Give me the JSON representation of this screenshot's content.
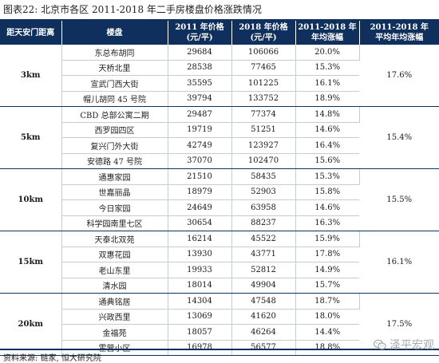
{
  "title": "图表22: 北京市各区 2011-2018 年二手房楼盘价格涨跌情况",
  "headers": {
    "distance": "距天安门距离",
    "estate": "楼盘",
    "price2011_line1": "2011 年价格",
    "price2011_line2": "(元/平)",
    "price2018_line1": "2018 年价格",
    "price2018_line2": "(元/平)",
    "yoy_line1": "2011-2018 年",
    "yoy_line2": "年均涨幅",
    "avg_line1": "2011-2018 年",
    "avg_line2": "平均年均涨幅"
  },
  "groups": [
    {
      "distance": "3km",
      "average": "17.6%",
      "rows": [
        {
          "estate": "东总布胡同",
          "p2011": "29684",
          "p2018": "106066",
          "yoy": "20.0%"
        },
        {
          "estate": "天桥北里",
          "p2011": "28538",
          "p2018": "77465",
          "yoy": "15.3%"
        },
        {
          "estate": "宣武门西大街",
          "p2011": "35595",
          "p2018": "101225",
          "yoy": "16.1%"
        },
        {
          "estate": "帽儿胡同 45 号院",
          "p2011": "39794",
          "p2018": "133752",
          "yoy": "18.9%"
        }
      ]
    },
    {
      "distance": "5km",
      "average": "15.4%",
      "rows": [
        {
          "estate": "CBD 总部公寓二期",
          "p2011": "29487",
          "p2018": "77374",
          "yoy": "14.8%"
        },
        {
          "estate": "西罗园四区",
          "p2011": "19719",
          "p2018": "51251",
          "yoy": "14.6%"
        },
        {
          "estate": "复兴门外大街",
          "p2011": "42749",
          "p2018": "123927",
          "yoy": "16.4%"
        },
        {
          "estate": "安德路 47 号院",
          "p2011": "37070",
          "p2018": "102470",
          "yoy": "15.6%"
        }
      ]
    },
    {
      "distance": "10km",
      "average": "15.5%",
      "rows": [
        {
          "estate": "通惠家园",
          "p2011": "21510",
          "p2018": "58435",
          "yoy": "15.3%"
        },
        {
          "estate": "世嘉丽晶",
          "p2011": "18979",
          "p2018": "52903",
          "yoy": "15.8%"
        },
        {
          "estate": "今日家园",
          "p2011": "24649",
          "p2018": "63958",
          "yoy": "14.6%"
        },
        {
          "estate": "科学园南里七区",
          "p2011": "30654",
          "p2018": "88237",
          "yoy": "16.3%"
        }
      ]
    },
    {
      "distance": "15km",
      "average": "16.1%",
      "rows": [
        {
          "estate": "天泰北双苑",
          "p2011": "16214",
          "p2018": "45522",
          "yoy": "15.9%"
        },
        {
          "estate": "双惠花园",
          "p2011": "13930",
          "p2018": "43771",
          "yoy": "17.8%"
        },
        {
          "estate": "老山东里",
          "p2011": "19933",
          "p2018": "52812",
          "yoy": "14.9%"
        },
        {
          "estate": "清水园",
          "p2011": "18014",
          "p2018": "49904",
          "yoy": "15.7%"
        }
      ]
    },
    {
      "distance": "20km",
      "average": "17.5%",
      "rows": [
        {
          "estate": "通典铭居",
          "p2011": "14304",
          "p2018": "47548",
          "yoy": "18.7%"
        },
        {
          "estate": "兴政西里",
          "p2011": "13069",
          "p2018": "41620",
          "yoy": "18.0%"
        },
        {
          "estate": "金福苑",
          "p2011": "18057",
          "p2018": "46264",
          "yoy": "14.4%"
        },
        {
          "estate": "霍营小区",
          "p2011": "16978",
          "p2018": "56577",
          "yoy": "18.8%"
        }
      ]
    }
  ],
  "source": "资料来源: 链家, 恒大研究院",
  "watermark": "泽平宏观",
  "colors": {
    "header_bg": "#0f2f5c",
    "header_text": "#ffffff"
  },
  "icons": {
    "watermark": "wechat-icon"
  }
}
